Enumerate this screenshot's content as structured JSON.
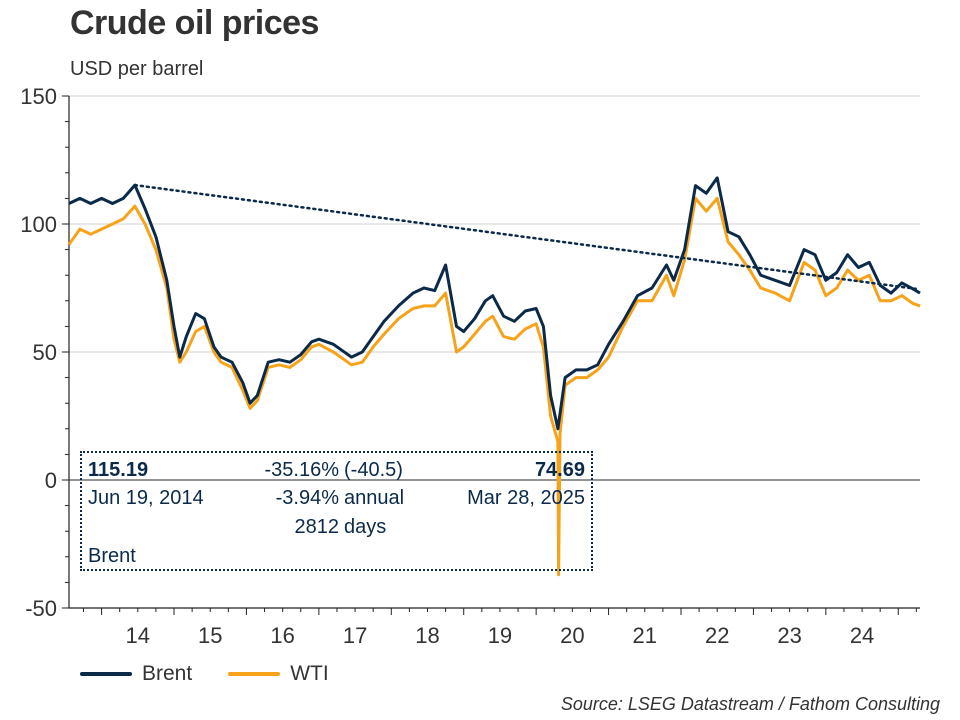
{
  "title": "Crude oil prices",
  "subtitle": "USD per barrel",
  "source": "Source: LSEG Datastream / Fathom Consulting",
  "colors": {
    "brent": "#0b2a4a",
    "wti": "#f6a21a",
    "axis": "#222222",
    "grid": "#d0d0d0",
    "trend": "#0b2a4a"
  },
  "annotation": {
    "start_value": "115.19",
    "start_date": "Jun 19, 2014",
    "change_pct": "-35.16%",
    "change_abs": "(-40.5)",
    "annual_pct": "-3.94%",
    "annual_label": "annual",
    "days_value": "2812",
    "days_label": "days",
    "end_value": "74.69",
    "end_date": "Mar 28, 2025",
    "series_label": "Brent"
  },
  "chart_data": {
    "type": "line",
    "title": "Crude oil prices",
    "ylabel": "USD per barrel",
    "xlabel": "",
    "ylim": [
      -50,
      150
    ],
    "xlim": [
      2013.55,
      2025.3
    ],
    "yticks": [
      -50,
      0,
      50,
      100,
      150
    ],
    "xtick_labels": [
      "14",
      "15",
      "16",
      "17",
      "18",
      "19",
      "20",
      "21",
      "22",
      "23",
      "24"
    ],
    "grid": true,
    "legend": "bottom-left",
    "series": [
      {
        "name": "Brent",
        "x": [
          2013.55,
          2013.7,
          2013.85,
          2014.0,
          2014.15,
          2014.3,
          2014.46,
          2014.6,
          2014.75,
          2014.9,
          2015.0,
          2015.08,
          2015.17,
          2015.3,
          2015.42,
          2015.55,
          2015.65,
          2015.8,
          2015.95,
          2016.05,
          2016.15,
          2016.3,
          2016.45,
          2016.6,
          2016.75,
          2016.9,
          2017.0,
          2017.2,
          2017.45,
          2017.6,
          2017.75,
          2017.9,
          2018.1,
          2018.3,
          2018.45,
          2018.6,
          2018.75,
          2018.9,
          2019.0,
          2019.15,
          2019.3,
          2019.4,
          2019.55,
          2019.7,
          2019.85,
          2020.0,
          2020.1,
          2020.2,
          2020.3,
          2020.4,
          2020.55,
          2020.7,
          2020.85,
          2021.0,
          2021.2,
          2021.4,
          2021.6,
          2021.8,
          2021.9,
          2022.05,
          2022.2,
          2022.35,
          2022.5,
          2022.65,
          2022.8,
          2022.95,
          2023.1,
          2023.3,
          2023.5,
          2023.7,
          2023.85,
          2024.0,
          2024.15,
          2024.3,
          2024.45,
          2024.6,
          2024.75,
          2024.9,
          2025.05,
          2025.2,
          2025.3
        ],
        "values": [
          108,
          110,
          108,
          110,
          108,
          110,
          115.19,
          106,
          95,
          78,
          60,
          48,
          56,
          65,
          63,
          52,
          48,
          46,
          38,
          30,
          33,
          46,
          47,
          46,
          49,
          54,
          55,
          53,
          48,
          50,
          56,
          62,
          68,
          73,
          75,
          74,
          84,
          60,
          58,
          63,
          70,
          72,
          64,
          62,
          66,
          67,
          60,
          33,
          20,
          40,
          43,
          43,
          45,
          53,
          62,
          72,
          75,
          84,
          78,
          90,
          115,
          112,
          118,
          97,
          95,
          88,
          80,
          78,
          76,
          90,
          88,
          78,
          81,
          88,
          83,
          85,
          76,
          73,
          77,
          74.69,
          73
        ]
      },
      {
        "name": "WTI",
        "x": [
          2013.55,
          2013.7,
          2013.85,
          2014.0,
          2014.15,
          2014.3,
          2014.46,
          2014.6,
          2014.75,
          2014.9,
          2015.0,
          2015.08,
          2015.17,
          2015.3,
          2015.42,
          2015.55,
          2015.65,
          2015.8,
          2015.95,
          2016.05,
          2016.15,
          2016.3,
          2016.45,
          2016.6,
          2016.75,
          2016.9,
          2017.0,
          2017.2,
          2017.45,
          2017.6,
          2017.75,
          2017.9,
          2018.1,
          2018.3,
          2018.45,
          2018.6,
          2018.75,
          2018.9,
          2019.0,
          2019.15,
          2019.3,
          2019.4,
          2019.55,
          2019.7,
          2019.85,
          2020.0,
          2020.1,
          2020.2,
          2020.3,
          2020.31,
          2020.33,
          2020.4,
          2020.55,
          2020.7,
          2020.85,
          2021.0,
          2021.2,
          2021.4,
          2021.6,
          2021.8,
          2021.9,
          2022.05,
          2022.2,
          2022.35,
          2022.5,
          2022.65,
          2022.8,
          2022.95,
          2023.1,
          2023.3,
          2023.5,
          2023.7,
          2023.85,
          2024.0,
          2024.15,
          2024.3,
          2024.45,
          2024.6,
          2024.75,
          2024.9,
          2025.05,
          2025.2,
          2025.3
        ],
        "values": [
          92,
          98,
          96,
          98,
          100,
          102,
          107,
          100,
          90,
          75,
          55,
          46,
          50,
          58,
          60,
          50,
          46,
          44,
          35,
          28,
          31,
          44,
          45,
          44,
          47,
          52,
          53,
          50,
          45,
          46,
          52,
          57,
          63,
          67,
          68,
          68,
          73,
          50,
          52,
          57,
          62,
          64,
          56,
          55,
          59,
          61,
          52,
          25,
          15,
          -37,
          18,
          37,
          40,
          40,
          43,
          48,
          60,
          70,
          70,
          80,
          72,
          86,
          110,
          105,
          110,
          93,
          88,
          82,
          75,
          73,
          70,
          85,
          82,
          72,
          75,
          82,
          78,
          80,
          70,
          70,
          72,
          69,
          68
        ]
      }
    ],
    "trendline": {
      "x": [
        2014.46,
        2025.24
      ],
      "values": [
        115.19,
        74.69
      ],
      "style": "dotted"
    }
  }
}
